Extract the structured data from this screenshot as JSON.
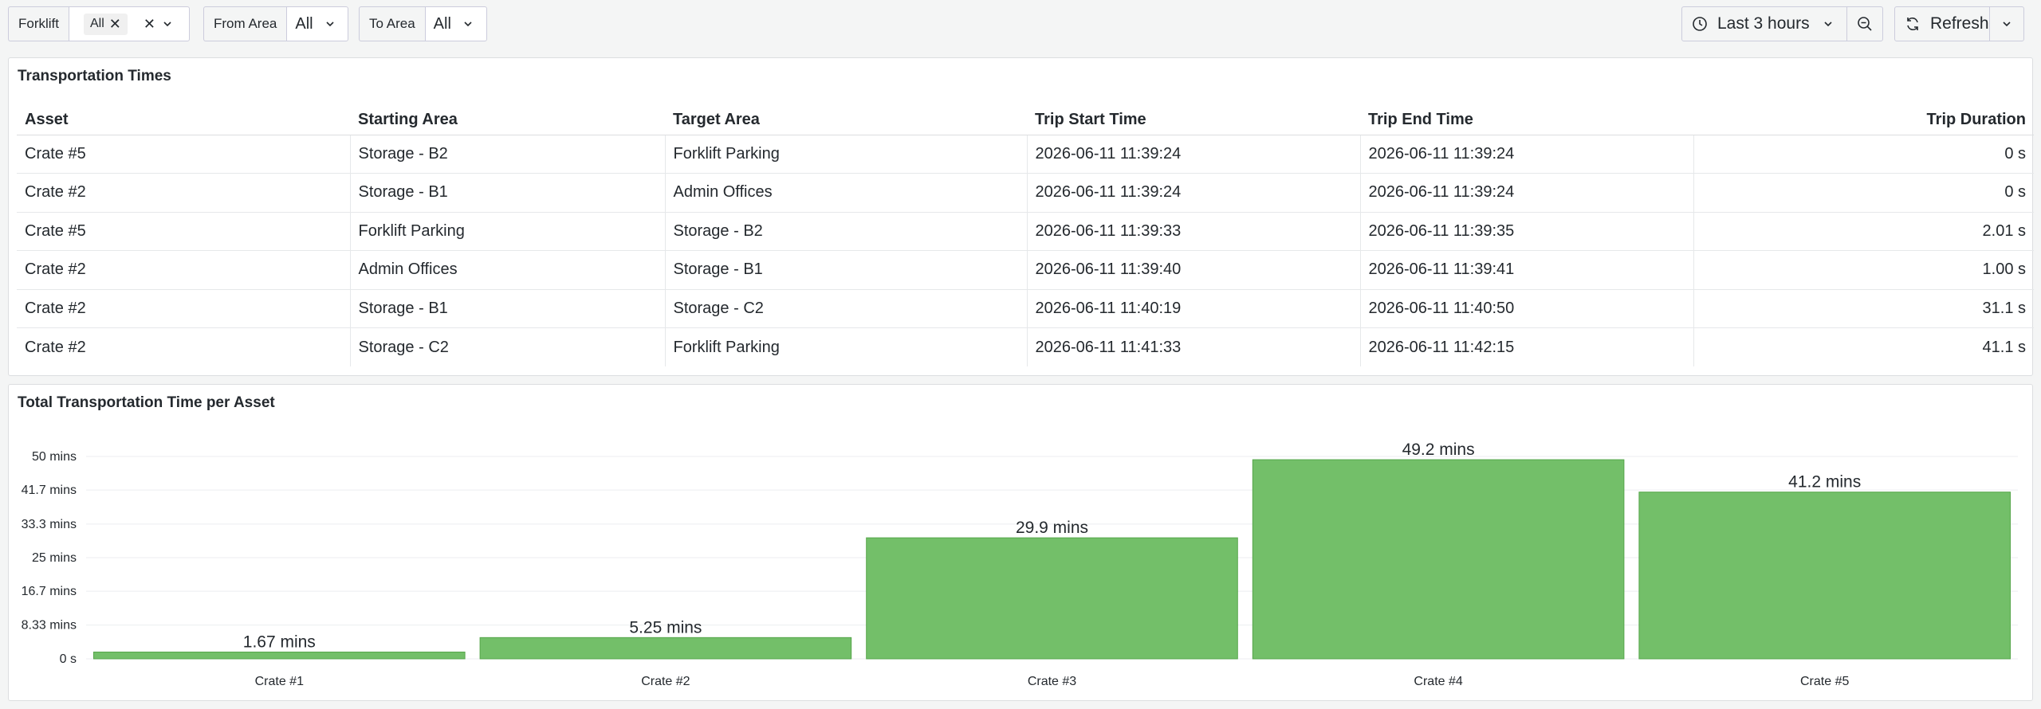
{
  "toolbar": {
    "forklift": {
      "label": "Forklift",
      "chip": "All"
    },
    "from_area": {
      "label": "From Area",
      "value": "All"
    },
    "to_area": {
      "label": "To Area",
      "value": "All"
    },
    "time_range": "Last 3 hours",
    "refresh_label": "Refresh"
  },
  "table_panel": {
    "title": "Transportation Times",
    "columns": [
      "Asset",
      "Starting Area",
      "Target Area",
      "Trip Start Time",
      "Trip End Time",
      "Trip Duration"
    ],
    "rows": [
      [
        "Crate #5",
        "Storage - B2",
        "Forklift Parking",
        "2026-06-11 11:39:24",
        "2026-06-11 11:39:24",
        "0 s"
      ],
      [
        "Crate #2",
        "Storage - B1",
        "Admin Offices",
        "2026-06-11 11:39:24",
        "2026-06-11 11:39:24",
        "0 s"
      ],
      [
        "Crate #5",
        "Forklift Parking",
        "Storage - B2",
        "2026-06-11 11:39:33",
        "2026-06-11 11:39:35",
        "2.01 s"
      ],
      [
        "Crate #2",
        "Admin Offices",
        "Storage - B1",
        "2026-06-11 11:39:40",
        "2026-06-11 11:39:41",
        "1.00 s"
      ],
      [
        "Crate #2",
        "Storage - B1",
        "Storage - C2",
        "2026-06-11 11:40:19",
        "2026-06-11 11:40:50",
        "31.1 s"
      ],
      [
        "Crate #2",
        "Storage - C2",
        "Forklift Parking",
        "2026-06-11 11:41:33",
        "2026-06-11 11:42:15",
        "41.1 s"
      ]
    ]
  },
  "chart_panel": {
    "title": "Total Transportation Time per Asset"
  },
  "chart_data": {
    "type": "bar",
    "title": "Total Transportation Time per Asset",
    "categories": [
      "Crate #1",
      "Crate #2",
      "Crate #3",
      "Crate #4",
      "Crate #5"
    ],
    "values": [
      1.67,
      5.25,
      29.9,
      49.2,
      41.2
    ],
    "value_labels": [
      "1.67 mins",
      "5.25 mins",
      "29.9 mins",
      "49.2 mins",
      "41.2 mins"
    ],
    "unit": "mins",
    "ylim": [
      0,
      50
    ],
    "yticks": [
      0,
      8.33,
      16.7,
      25,
      33.3,
      41.7,
      50
    ],
    "ytick_labels": [
      "0 s",
      "8.33 mins",
      "16.7 mins",
      "25 mins",
      "33.3 mins",
      "41.7 mins",
      "50 mins"
    ],
    "grid": true,
    "bar_color": "#73bf69",
    "bar_stroke": "#56a64b"
  }
}
